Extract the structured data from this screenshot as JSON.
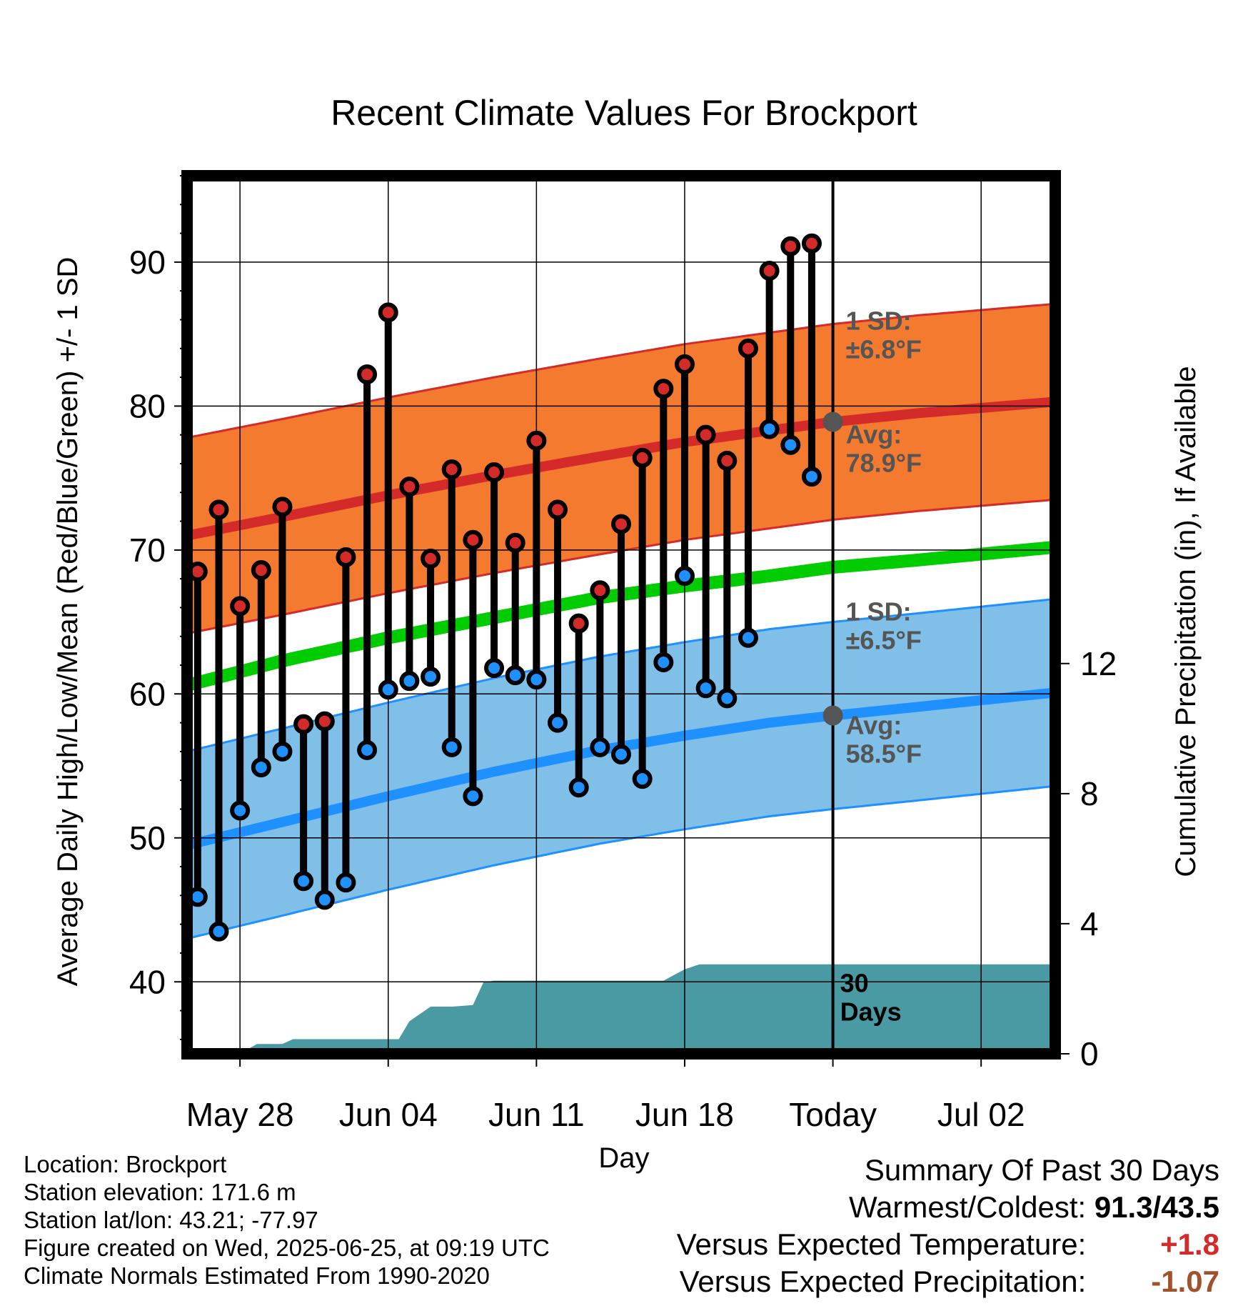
{
  "chart_data": {
    "type": "line",
    "title": "Recent Climate Values For Brockport",
    "xlabel": "Day",
    "ylabel": "Average Daily High/Low/Mean (Red/Blue/Green) +/- 1 SD",
    "ylabel_right": "Cumulative Precipitation (in), If Available",
    "ylim": [
      35,
      96
    ],
    "ylim_right": [
      0,
      27
    ],
    "yticks": [
      "40",
      "50",
      "60",
      "70",
      "80",
      "90"
    ],
    "yticks_right": [
      "0",
      "4",
      "8",
      "12"
    ],
    "xrange_days": [
      -29.5,
      11.5
    ],
    "xticks": [
      {
        "day": -27,
        "label": "May 28"
      },
      {
        "day": -20,
        "label": "Jun 04"
      },
      {
        "day": -13,
        "label": "Jun 11"
      },
      {
        "day": -6,
        "label": "Jun 18"
      },
      {
        "day": 1,
        "label": "Today"
      },
      {
        "day": 8,
        "label": "Jul 02"
      }
    ],
    "grid": true,
    "today_day": 1,
    "today_label": "30\nDays",
    "daily": {
      "day": [
        -29,
        -28,
        -27,
        -26,
        -25,
        -24,
        -23,
        -22,
        -21,
        -20,
        -19,
        -18,
        -17,
        -16,
        -15,
        -14,
        -13,
        -12,
        -11,
        -10,
        -9,
        -8,
        -7,
        -6,
        -5,
        -4,
        -3,
        -2,
        -1,
        0
      ],
      "high": [
        68.5,
        72.8,
        66.1,
        68.6,
        73.0,
        57.9,
        58.1,
        69.5,
        82.2,
        86.5,
        74.4,
        69.4,
        75.6,
        70.7,
        75.4,
        70.5,
        77.6,
        72.8,
        64.9,
        67.2,
        71.8,
        76.4,
        81.2,
        82.9,
        78.0,
        76.2,
        84.0,
        89.4,
        91.1,
        91.3
      ],
      "low": [
        45.9,
        43.5,
        51.9,
        54.9,
        56.0,
        47.0,
        45.7,
        46.9,
        56.1,
        60.3,
        60.9,
        61.2,
        56.3,
        52.9,
        61.8,
        61.3,
        61.0,
        58.0,
        53.5,
        56.3,
        55.8,
        54.1,
        62.2,
        68.2,
        60.4,
        59.7,
        63.9,
        78.4,
        77.3,
        75.1
      ]
    },
    "normals": {
      "day": [
        -29.5,
        -25,
        -20,
        -15,
        -10,
        -6,
        -2,
        1,
        5,
        11.5
      ],
      "high": [
        71.0,
        72.3,
        73.8,
        75.2,
        76.5,
        77.5,
        78.3,
        78.9,
        79.5,
        80.3
      ],
      "high_sd": 6.8,
      "low": [
        49.5,
        51.1,
        52.9,
        54.6,
        56.1,
        57.1,
        58.0,
        58.5,
        59.1,
        60.1
      ],
      "low_sd": 6.5,
      "mean": [
        60.6,
        62.3,
        63.9,
        65.3,
        66.7,
        67.5,
        68.2,
        68.8,
        69.3,
        70.2
      ]
    },
    "precip": {
      "day": [
        -29.5,
        -27,
        -26.2,
        -25,
        -24.5,
        -23,
        -19.5,
        -19,
        -18,
        -17,
        -16,
        -15.5,
        -15,
        -14,
        -13,
        -12,
        -11,
        -10,
        -9,
        -8,
        -7,
        -6,
        -5.3,
        -5,
        11.5
      ],
      "cum": [
        0,
        0,
        0.3,
        0.3,
        0.45,
        0.45,
        0.45,
        1.0,
        1.45,
        1.45,
        1.5,
        2.2,
        2.25,
        2.25,
        2.25,
        2.25,
        2.25,
        2.25,
        2.25,
        2.25,
        2.25,
        2.6,
        2.75,
        2.75,
        2.75
      ]
    },
    "annotations": {
      "high_sd": [
        "1 SD:",
        "±6.8°F"
      ],
      "high_avg": [
        "Avg:",
        "78.9°F"
      ],
      "low_sd": [
        "1 SD:",
        "±6.5°F"
      ],
      "low_avg": [
        "Avg:",
        "58.5°F"
      ]
    },
    "colors": {
      "high_band": "#f47a30",
      "high_line": "#d42a2a",
      "low_band": "#80c0e8",
      "low_line": "#1e90ff",
      "mean_line": "#00cc00",
      "precip": "#4a9aa4",
      "high_dot": "#d42a2a",
      "low_dot": "#1e90ff",
      "avg_dot": "#555555"
    }
  },
  "info": {
    "location": "Location: Brockport",
    "elevation": "Station elevation: 171.6 m",
    "latlon": "Station lat/lon: 43.21; -77.97",
    "created": "Figure created on Wed, 2025-06-25, at 09:19 UTC",
    "normals": "Climate Normals Estimated From 1990-2020"
  },
  "summary": {
    "title": "Summary Of Past 30 Days",
    "warmest_label": "Warmest/Coldest:",
    "warmest_value": "91.3/43.5",
    "temp_label": "Versus Expected Temperature:",
    "temp_value": "+1.8",
    "temp_color": "#d42a2a",
    "precip_label": "Versus Expected Precipitation:",
    "precip_value": "-1.07",
    "precip_color": "#a0522d"
  }
}
